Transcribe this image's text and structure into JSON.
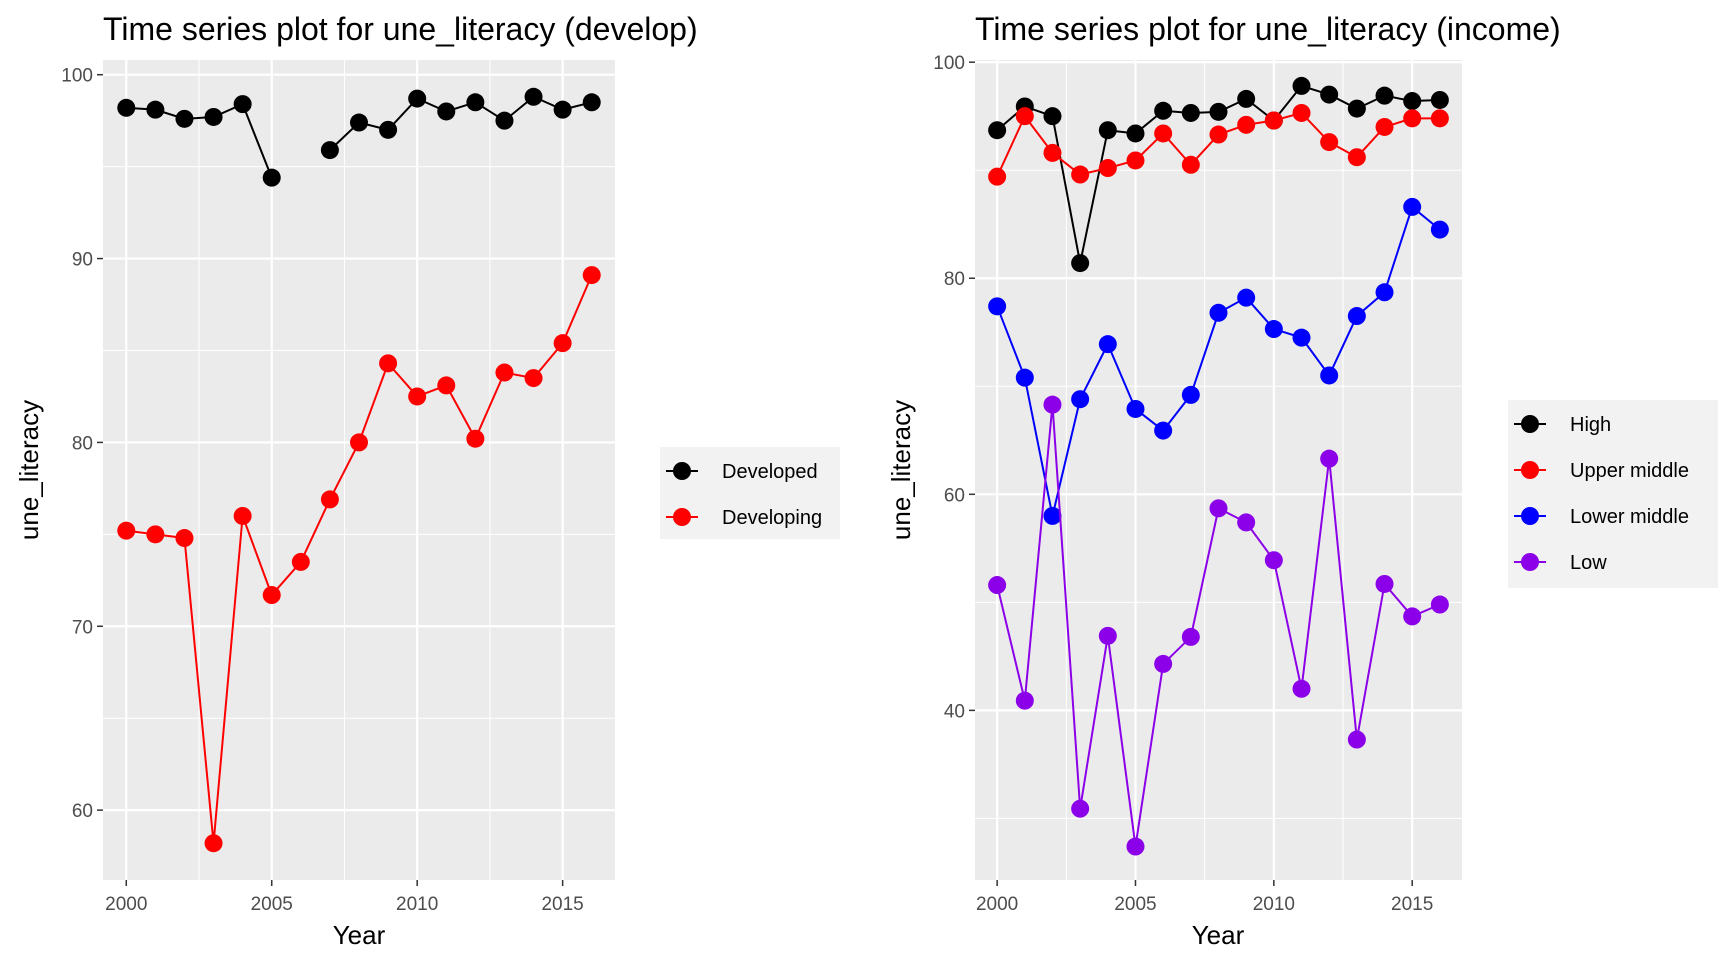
{
  "chart_data": [
    {
      "type": "line",
      "title": "Time series plot for une_literacy (develop)",
      "xlabel": "Year",
      "ylabel": "une_literacy",
      "xlim": [
        1999.2,
        2016.8
      ],
      "ylim": [
        56.2,
        100.8
      ],
      "x_ticks": [
        2000,
        2005,
        2010,
        2015
      ],
      "y_ticks": [
        60,
        70,
        80,
        90,
        100
      ],
      "grid": true,
      "legend_position": "right",
      "series": [
        {
          "name": "Developed",
          "color": "#000000",
          "x": [
            2000,
            2001,
            2002,
            2003,
            2004,
            2005,
            2007,
            2008,
            2009,
            2010,
            2011,
            2012,
            2013,
            2014,
            2015,
            2016
          ],
          "values": [
            98.2,
            98.1,
            97.6,
            97.7,
            98.4,
            94.4,
            95.9,
            97.4,
            97.0,
            98.7,
            98.0,
            98.5,
            97.5,
            98.8,
            98.1,
            98.5
          ]
        },
        {
          "name": "Developing",
          "color": "#ff0000",
          "x": [
            2000,
            2001,
            2002,
            2003,
            2004,
            2005,
            2006,
            2007,
            2008,
            2009,
            2010,
            2011,
            2012,
            2013,
            2014,
            2015,
            2016
          ],
          "values": [
            75.2,
            75.0,
            74.8,
            58.2,
            76.0,
            71.7,
            73.5,
            76.9,
            80.0,
            84.3,
            82.5,
            83.1,
            80.2,
            83.8,
            83.5,
            85.4,
            89.1
          ]
        }
      ]
    },
    {
      "type": "line",
      "title": "Time series plot for une_literacy (income)",
      "xlabel": "Year",
      "ylabel": "une_literacy",
      "xlim": [
        1999.2,
        2016.8
      ],
      "ylim": [
        24.3,
        100.2
      ],
      "x_ticks": [
        2000,
        2005,
        2010,
        2015
      ],
      "y_ticks": [
        40,
        60,
        80,
        100
      ],
      "grid": true,
      "legend_position": "right",
      "series": [
        {
          "name": "High",
          "color": "#000000",
          "x": [
            2000,
            2001,
            2002,
            2003,
            2004,
            2005,
            2006,
            2007,
            2008,
            2009,
            2010,
            2011,
            2012,
            2013,
            2014,
            2015,
            2016
          ],
          "values": [
            93.7,
            95.9,
            95.0,
            81.4,
            93.7,
            93.4,
            95.5,
            95.3,
            95.4,
            96.6,
            94.6,
            97.8,
            97.0,
            95.7,
            96.9,
            96.4,
            96.5
          ]
        },
        {
          "name": "Upper middle",
          "color": "#ff0000",
          "x": [
            2000,
            2001,
            2002,
            2003,
            2004,
            2005,
            2006,
            2007,
            2008,
            2009,
            2010,
            2011,
            2012,
            2013,
            2014,
            2015,
            2016
          ],
          "values": [
            89.4,
            95.0,
            91.6,
            89.6,
            90.2,
            90.9,
            93.4,
            90.5,
            93.3,
            94.2,
            94.6,
            95.3,
            92.6,
            91.2,
            94.0,
            94.8,
            94.8
          ]
        },
        {
          "name": "Lower middle",
          "color": "#0000ff",
          "x": [
            2000,
            2001,
            2002,
            2003,
            2004,
            2005,
            2006,
            2007,
            2008,
            2009,
            2010,
            2011,
            2012,
            2013,
            2014,
            2015,
            2016
          ],
          "values": [
            77.4,
            70.8,
            58.0,
            68.8,
            73.9,
            67.9,
            65.9,
            69.2,
            76.8,
            78.2,
            75.3,
            74.5,
            71.0,
            76.5,
            78.7,
            86.6,
            84.5
          ]
        },
        {
          "name": "Low",
          "color": "#8b00e8",
          "x": [
            2000,
            2001,
            2002,
            2003,
            2004,
            2005,
            2006,
            2007,
            2008,
            2009,
            2010,
            2011,
            2012,
            2013,
            2014,
            2015,
            2016
          ],
          "values": [
            51.6,
            40.9,
            68.3,
            30.9,
            46.9,
            27.4,
            44.3,
            46.8,
            58.7,
            57.4,
            53.9,
            42.0,
            63.3,
            37.3,
            51.7,
            48.7,
            49.8
          ]
        }
      ]
    }
  ]
}
